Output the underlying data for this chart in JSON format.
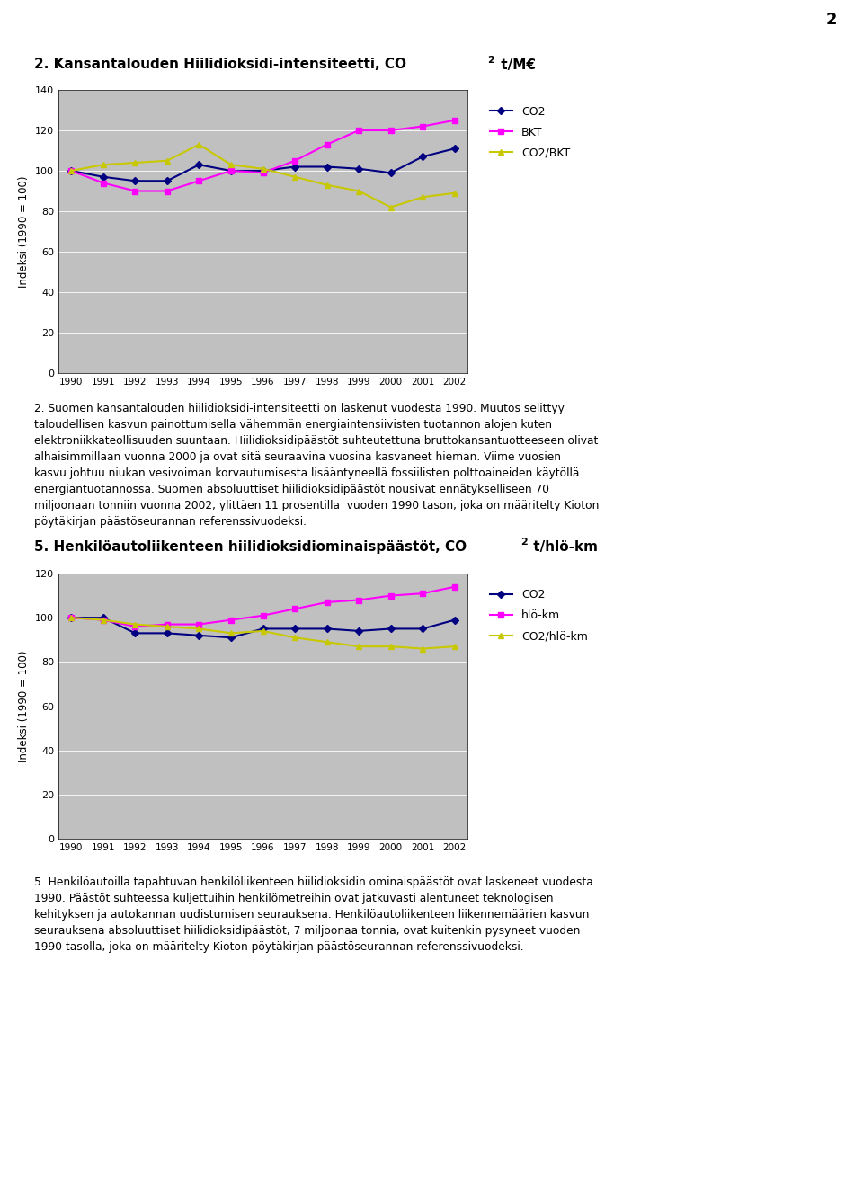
{
  "years": [
    1990,
    1991,
    1992,
    1993,
    1994,
    1995,
    1996,
    1997,
    1998,
    1999,
    2000,
    2001,
    2002
  ],
  "chart1_CO2": [
    100,
    97,
    95,
    95,
    103,
    100,
    100,
    102,
    102,
    101,
    99,
    107,
    111
  ],
  "chart1_BKT": [
    100,
    94,
    90,
    90,
    95,
    100,
    99,
    105,
    113,
    120,
    120,
    122,
    125
  ],
  "chart1_CO2BKT": [
    100,
    103,
    104,
    105,
    113,
    103,
    101,
    97,
    93,
    90,
    82,
    87,
    89
  ],
  "chart1_ylabel": "Indeksi (1990 = 100)",
  "chart1_ylim": [
    0,
    140
  ],
  "chart1_yticks": [
    0,
    20,
    40,
    60,
    80,
    100,
    120,
    140
  ],
  "chart2_CO2": [
    100,
    100,
    93,
    93,
    92,
    91,
    95,
    95,
    95,
    94,
    95,
    95,
    99
  ],
  "chart2_hlokm": [
    100,
    99,
    96,
    97,
    97,
    99,
    101,
    104,
    107,
    108,
    110,
    111,
    114
  ],
  "chart2_CO2hlokm": [
    100,
    99,
    97,
    96,
    95,
    93,
    94,
    91,
    89,
    87,
    87,
    86,
    87
  ],
  "chart2_ylabel": "Indeksi (1990 = 100)",
  "chart2_ylim": [
    0,
    120
  ],
  "chart2_yticks": [
    0,
    20,
    40,
    60,
    80,
    100,
    120
  ],
  "color_CO2": "#000080",
  "color_BKT": "#FF00FF",
  "color_yellow": "#C8C800",
  "plot_bg_color": "#C0C0C0",
  "fig_bg_color": "#FFFFFF",
  "page_number": "2",
  "title1a": "2. Kansantalouden Hiilidioksidi-intensiteetti, CO",
  "title1b": "2",
  "title1c": " t/M€",
  "title2a": "5. Henkilöautoliikenteen hiilidioksidiominaispäästöt, CO",
  "title2b": "2",
  "title2c": " t/hlö-km",
  "legend1": [
    "CO2",
    "BKT",
    "CO2/BKT"
  ],
  "legend2": [
    "CO2",
    "hlö-km",
    "CO2/hlö-km"
  ],
  "para1_lines": [
    "2. Suomen kansantalouden hiilidioksidi-intensiteetti on laskenut vuodesta 1990. Muutos selittyy",
    "taloudellisen kasvun painottumisella vähemmän energiaintensiivisten tuotannon alojen kuten",
    "elektroniikkateollisuuden suuntaan. Hiilidioksidipäästöt suhteutettuna bruttokansantuotteeseen olivat",
    "alhaisimmillaan vuonna 2000 ja ovat sitä seuraavina vuosina kasvaneet hieman. Viime vuosien",
    "kasvu johtuu niukan vesivoiman korvautumisesta lisääntyneellä fossiilisten polttoaineiden käytöllä",
    "energiantuotannossa. Suomen absoluuttiset hiilidioksidipäästöt nousivat ennätykselliseen 70",
    "miljoonaan tonniin vuonna 2002, ylittäen 11 prosentilla  vuoden 1990 tason, joka on määritelty Kioton",
    "pöytäkirjan päästöseurannan referenssivuodeksi."
  ],
  "para2_lines": [
    "5. Henkilöautoilla tapahtuvan henkilöliikenteen hiilidioksidin ominaispäästöt ovat laskeneet vuodesta",
    "1990. Päästöt suhteessa kuljettuihin henkilömetreihin ovat jatkuvasti alentuneet teknologisen",
    "kehityksen ja autokannan uudistumisen seurauksena. Henkilöautoliikenteen liikennemäärien kasvun",
    "seurauksena absoluuttiset hiilidioksidipäästöt, 7 miljoonaa tonnia, ovat kuitenkin pysyneet vuoden",
    "1990 tasolla, joka on määritelty Kioton pöytäkirjan päästöseurannan referenssivuodeksi."
  ]
}
